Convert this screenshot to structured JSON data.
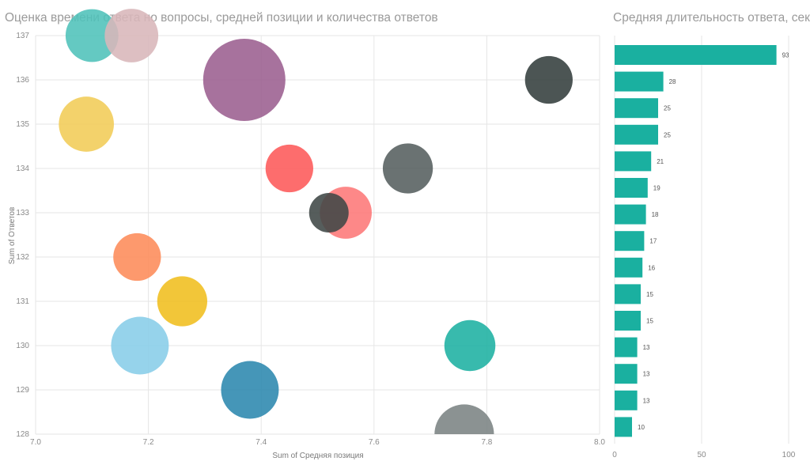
{
  "chart_data": [
    {
      "type": "scatter",
      "title": "Оценка времени ответа но вопросы,  средней позиции и количества ответов",
      "xlabel": "Sum of Средняя позиция",
      "ylabel": "Sum of Ответов",
      "xlim": [
        7.0,
        8.0
      ],
      "ylim": [
        128,
        137
      ],
      "xticks": [
        "7.0",
        "7.2",
        "7.4",
        "7.6",
        "7.8",
        "8.0"
      ],
      "yticks": [
        "128",
        "129",
        "130",
        "131",
        "132",
        "133",
        "134",
        "135",
        "136",
        "137"
      ],
      "grid": true,
      "bubbles": [
        {
          "x": 7.37,
          "y": 136,
          "size": 93,
          "color": "#9b5e8f"
        },
        {
          "x": 7.1,
          "y": 137,
          "size": 18,
          "color": "#4fc1b9"
        },
        {
          "x": 7.17,
          "y": 137,
          "size": 19,
          "color": "#d8b6b9"
        },
        {
          "x": 7.91,
          "y": 136,
          "size": 13,
          "color": "#333d3c"
        },
        {
          "x": 7.09,
          "y": 135,
          "size": 21,
          "color": "#f1cc57"
        },
        {
          "x": 7.45,
          "y": 134,
          "size": 13,
          "color": "#fd5959"
        },
        {
          "x": 7.66,
          "y": 134,
          "size": 15,
          "color": "#555f5e"
        },
        {
          "x": 7.55,
          "y": 133,
          "size": 17,
          "color": "#fd7878"
        },
        {
          "x": 7.52,
          "y": 133,
          "size": 10,
          "color": "#3f4746"
        },
        {
          "x": 7.18,
          "y": 132,
          "size": 13,
          "color": "#fd8b59"
        },
        {
          "x": 7.26,
          "y": 131,
          "size": 15,
          "color": "#f0be1e"
        },
        {
          "x": 7.185,
          "y": 130,
          "size": 25,
          "color": "#88cde8"
        },
        {
          "x": 7.77,
          "y": 130,
          "size": 16,
          "color": "#1cb1a2"
        },
        {
          "x": 7.38,
          "y": 129,
          "size": 25,
          "color": "#2b87ae"
        },
        {
          "x": 7.76,
          "y": 128,
          "size": 28,
          "color": "#7b8383"
        }
      ]
    },
    {
      "type": "bar",
      "orientation": "horizontal",
      "title": "Средняя длительность ответа, сек",
      "values": [
        93,
        28,
        25,
        25,
        21,
        19,
        18,
        17,
        16,
        15,
        15,
        13,
        13,
        13,
        10
      ],
      "xlim": [
        0,
        100
      ],
      "xticks": [
        "0",
        "50",
        "100"
      ],
      "bar_color": "#1ab0a0",
      "grid": true
    }
  ]
}
